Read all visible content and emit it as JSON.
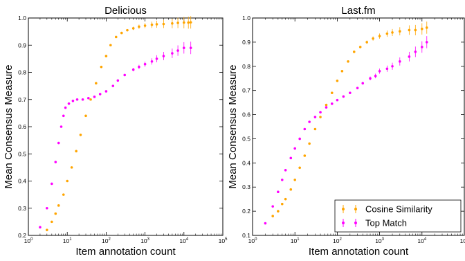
{
  "chart_data": [
    {
      "type": "scatter",
      "title": "Delicious",
      "xlabel": "Item annotation count",
      "ylabel": "Mean Consensus Measure",
      "xscale": "log",
      "xlim": [
        1,
        100000
      ],
      "ylim": [
        0.2,
        1.0
      ],
      "x_ticks": [
        "10^0",
        "10^1",
        "10^2",
        "10^3",
        "10^4",
        "10^5"
      ],
      "y_ticks": [
        "0.2",
        "0.3",
        "0.4",
        "0.5",
        "0.6",
        "0.7",
        "0.8",
        "0.9",
        "1.0"
      ],
      "legend": null,
      "series": [
        {
          "name": "Cosine Similarity",
          "color": "#FFA500",
          "x": [
            3,
            4,
            5,
            6,
            8,
            10,
            13,
            17,
            22,
            30,
            40,
            55,
            75,
            100,
            130,
            180,
            250,
            350,
            500,
            700,
            1000,
            1500,
            2000,
            3000,
            5000,
            7000,
            10000,
            13000,
            15000
          ],
          "y": [
            0.22,
            0.25,
            0.28,
            0.31,
            0.35,
            0.4,
            0.45,
            0.51,
            0.57,
            0.64,
            0.7,
            0.76,
            0.82,
            0.86,
            0.9,
            0.93,
            0.945,
            0.955,
            0.962,
            0.968,
            0.972,
            0.975,
            0.977,
            0.978,
            0.98,
            0.982,
            0.983,
            0.983,
            0.984
          ]
        },
        {
          "name": "Top Match",
          "color": "#FF00FF",
          "x": [
            2,
            3,
            4,
            5,
            6,
            7,
            8,
            9,
            11,
            14,
            18,
            25,
            35,
            50,
            70,
            100,
            150,
            200,
            300,
            500,
            700,
            1000,
            1500,
            2000,
            3000,
            5000,
            7000,
            10000,
            15000
          ],
          "y": [
            0.23,
            0.3,
            0.39,
            0.47,
            0.54,
            0.6,
            0.64,
            0.67,
            0.685,
            0.695,
            0.7,
            0.7,
            0.705,
            0.71,
            0.72,
            0.73,
            0.75,
            0.77,
            0.79,
            0.81,
            0.82,
            0.83,
            0.84,
            0.85,
            0.86,
            0.87,
            0.88,
            0.89,
            0.89
          ]
        }
      ]
    },
    {
      "type": "scatter",
      "title": "Last.fm",
      "xlabel": "Item annotation count",
      "ylabel": "Mean Consensus Measure",
      "xscale": "log",
      "xlim": [
        1,
        100000
      ],
      "ylim": [
        0.1,
        1.0
      ],
      "x_ticks": [
        "10^0",
        "10^1",
        "10^2",
        "10^3",
        "10^4",
        "10^5"
      ],
      "y_ticks": [
        "0.1",
        "0.2",
        "0.3",
        "0.4",
        "0.5",
        "0.6",
        "0.7",
        "0.8",
        "0.9",
        "1.0"
      ],
      "legend": "bottom-right",
      "series": [
        {
          "name": "Cosine Similarity",
          "color": "#FFA500",
          "x": [
            3,
            4,
            5,
            6,
            8,
            10,
            13,
            17,
            22,
            30,
            40,
            55,
            75,
            100,
            130,
            180,
            250,
            350,
            500,
            700,
            1000,
            1500,
            2000,
            3000,
            5000,
            7000,
            10000,
            13000
          ],
          "y": [
            0.18,
            0.2,
            0.23,
            0.25,
            0.29,
            0.33,
            0.38,
            0.43,
            0.48,
            0.54,
            0.59,
            0.64,
            0.69,
            0.74,
            0.78,
            0.82,
            0.86,
            0.88,
            0.9,
            0.915,
            0.925,
            0.935,
            0.94,
            0.945,
            0.95,
            0.95,
            0.955,
            0.96
          ]
        },
        {
          "name": "Top Match",
          "color": "#FF00FF",
          "x": [
            2,
            3,
            4,
            5,
            6,
            8,
            10,
            13,
            17,
            22,
            30,
            40,
            55,
            75,
            100,
            140,
            200,
            300,
            400,
            600,
            800,
            1000,
            1500,
            2000,
            3000,
            5000,
            7000,
            10000,
            13000
          ],
          "y": [
            0.15,
            0.22,
            0.28,
            0.33,
            0.37,
            0.42,
            0.46,
            0.5,
            0.54,
            0.57,
            0.59,
            0.61,
            0.63,
            0.645,
            0.66,
            0.675,
            0.69,
            0.71,
            0.73,
            0.75,
            0.76,
            0.78,
            0.79,
            0.8,
            0.82,
            0.84,
            0.86,
            0.88,
            0.9
          ]
        }
      ]
    }
  ]
}
